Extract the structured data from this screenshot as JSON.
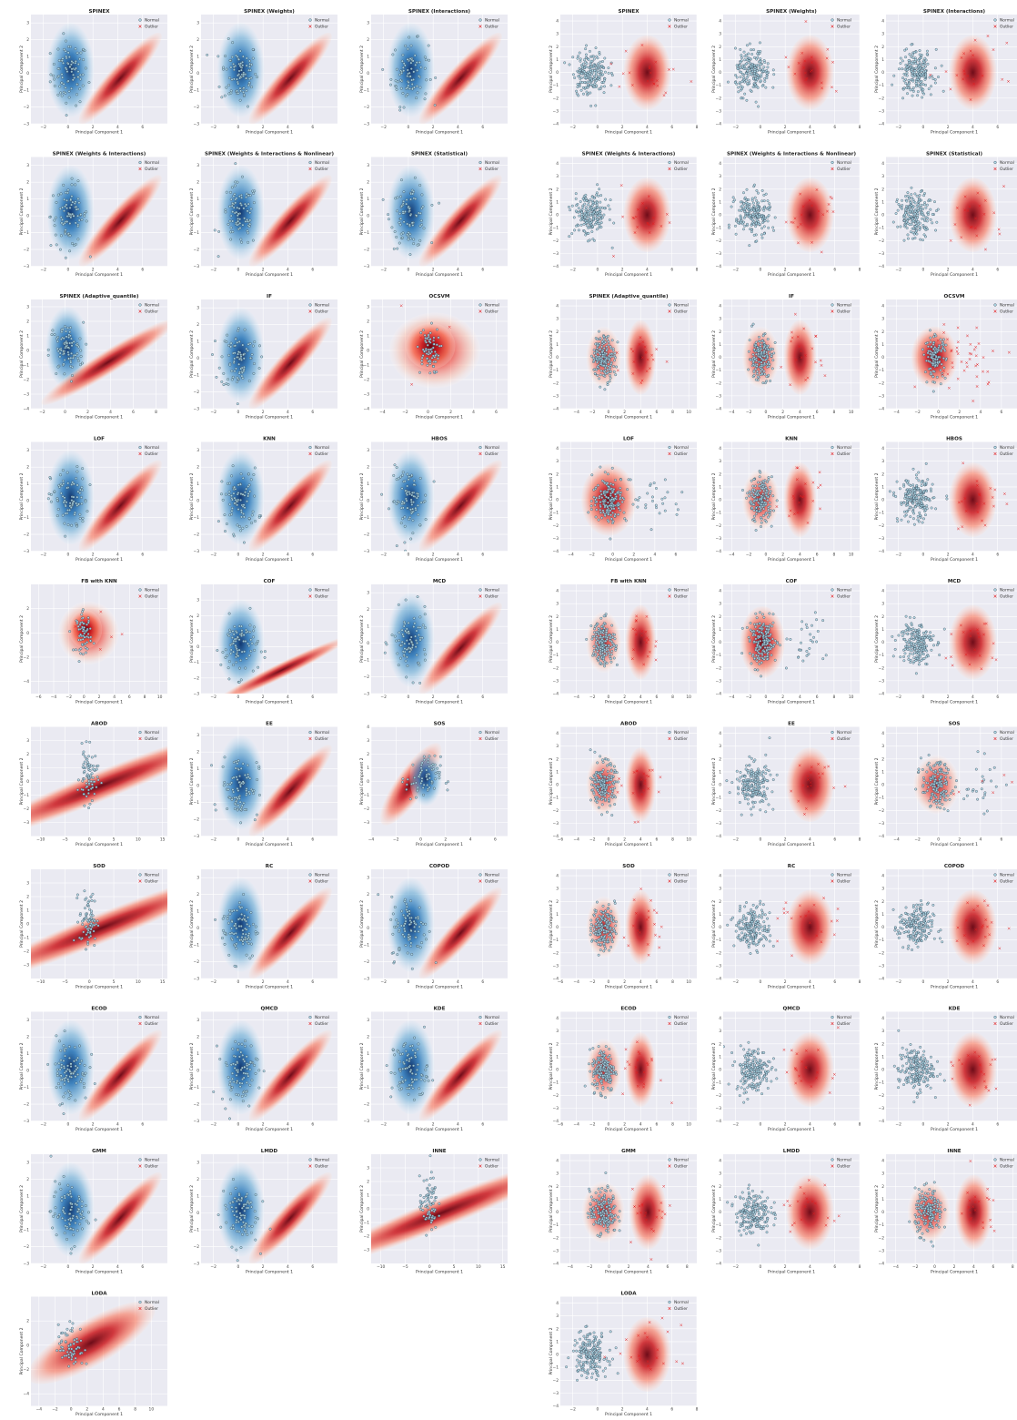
{
  "figure": {
    "xlabel": "Principal Component 1",
    "ylabel": "Principal Component 2",
    "legend": {
      "normal": "Normal",
      "outlier": "Outlier",
      "placement": "top-right"
    },
    "colors": {
      "background": "#eaeaf2",
      "normal_cmap": "Blues",
      "outlier_cmap": "Reds",
      "outlier_marker": "#e41a1c",
      "normal_point": "#add8e6"
    }
  },
  "chart_data": [
    {
      "panel": "left",
      "type": "scatter",
      "description_of_data": "outlier detection results projected on 2 principal components",
      "default": {
        "xlim": [
          -3,
          8
        ],
        "ylim": [
          -3,
          3.5
        ],
        "xticks": [
          -2,
          0,
          2,
          4,
          6
        ],
        "yticks": [
          -3,
          -2,
          -1,
          0,
          1,
          2,
          3
        ],
        "mode": "blue"
      },
      "subplots": [
        {
          "title": "SPINEX"
        },
        {
          "title": "SPINEX (Weights)"
        },
        {
          "title": "SPINEX (Interactions)"
        },
        {
          "title": "SPINEX (Weights & Interactions)"
        },
        {
          "title": "SPINEX (Weights & Interactions & Nonlinear)"
        },
        {
          "title": "SPINEX (Statistical)"
        },
        {
          "title": "SPINEX (Adaptive_quantile)",
          "mode": "blue-long",
          "xlim": [
            -3,
            9
          ],
          "ylim": [
            -4,
            3.5
          ],
          "yticks": [
            -4,
            -3,
            -2,
            -1,
            0,
            1,
            2,
            3
          ],
          "xticks": [
            -2,
            0,
            2,
            4,
            6,
            8
          ]
        },
        {
          "title": "IF"
        },
        {
          "title": "OCSVM",
          "mode": "red-big",
          "xlim": [
            -5,
            7
          ],
          "ylim": [
            -4,
            3.5
          ],
          "xticks": [
            -4,
            -2,
            0,
            2,
            4,
            6
          ],
          "yticks": [
            -4,
            -3,
            -2,
            -1,
            0,
            1,
            2,
            3
          ]
        },
        {
          "title": "LOF"
        },
        {
          "title": "KNN"
        },
        {
          "title": "HBOS"
        },
        {
          "title": "FB with KNN",
          "mode": "red-big",
          "xlim": [
            -7,
            11
          ],
          "ylim": [
            -5,
            4
          ],
          "xticks": [
            -6,
            -4,
            -2,
            0,
            2,
            4,
            6,
            8,
            10
          ],
          "yticks": [
            -4,
            -2,
            0,
            2
          ]
        },
        {
          "title": "COF",
          "mode": "blue-flat",
          "xlim": [
            -3,
            8
          ],
          "ylim": [
            -3,
            4
          ],
          "yticks": [
            -3,
            -2,
            -1,
            0,
            1,
            2,
            3
          ]
        },
        {
          "title": "MCD"
        },
        {
          "title": "ABOD",
          "mode": "red-diag",
          "xlim": [
            -12,
            16
          ],
          "ylim": [
            -4,
            4
          ],
          "xticks": [
            -10,
            -5,
            0,
            5,
            10,
            15
          ],
          "yticks": [
            -3,
            -2,
            -1,
            0,
            1,
            2,
            3
          ]
        },
        {
          "title": "EE"
        },
        {
          "title": "SOS",
          "mode": "red-sos",
          "xlim": [
            -4,
            7
          ],
          "ylim": [
            -4,
            4
          ],
          "xticks": [
            -4,
            -2,
            0,
            2,
            4,
            6
          ],
          "yticks": [
            -3,
            -2,
            -1,
            0,
            1,
            2,
            3,
            4
          ]
        },
        {
          "title": "SOD",
          "mode": "red-diag",
          "xlim": [
            -12,
            16
          ],
          "ylim": [
            -4,
            4
          ],
          "xticks": [
            -10,
            -5,
            0,
            5,
            10,
            15
          ],
          "yticks": [
            -3,
            -2,
            -1,
            0,
            1,
            2,
            3
          ]
        },
        {
          "title": "RC"
        },
        {
          "title": "COPOD"
        },
        {
          "title": "ECOD"
        },
        {
          "title": "QMCD"
        },
        {
          "title": "KDE"
        },
        {
          "title": "GMM"
        },
        {
          "title": "LMDD"
        },
        {
          "title": "INNE",
          "mode": "red-diag",
          "xlim": [
            -12,
            16
          ],
          "ylim": [
            -4,
            4
          ],
          "xticks": [
            -10,
            -5,
            0,
            5,
            10,
            15
          ],
          "yticks": [
            -3,
            -2,
            -1,
            0,
            1,
            2,
            3
          ]
        },
        {
          "title": "LODA",
          "mode": "red-loda",
          "xlim": [
            -5,
            12
          ],
          "ylim": [
            -5,
            4
          ],
          "xticks": [
            -4,
            -2,
            0,
            2,
            4,
            6,
            8,
            10
          ],
          "yticks": [
            -4,
            -2,
            0,
            2
          ]
        }
      ]
    },
    {
      "panel": "right",
      "type": "scatter",
      "description_of_data": "outlier detection results projected on 2 principal components",
      "default": {
        "xlim": [
          -3,
          8
        ],
        "ylim": [
          -4,
          4.5
        ],
        "xticks": [
          -2,
          0,
          2,
          4,
          6,
          8
        ],
        "yticks": [
          -4,
          -3,
          -2,
          -1,
          0,
          1,
          2,
          3,
          4
        ],
        "mode": "two"
      },
      "subplots": [
        {
          "title": "SPINEX"
        },
        {
          "title": "SPINEX (Weights)"
        },
        {
          "title": "SPINEX (Interactions)"
        },
        {
          "title": "SPINEX (Weights & Interactions)"
        },
        {
          "title": "SPINEX (Weights & Interactions & Nonlinear)"
        },
        {
          "title": "SPINEX (Statistical)"
        },
        {
          "title": "SPINEX (Adaptive_quantile)",
          "mode": "two-wide",
          "xlim": [
            -6,
            11
          ],
          "xticks": [
            -4,
            -2,
            0,
            2,
            4,
            6,
            8,
            10
          ]
        },
        {
          "title": "IF",
          "mode": "two-wide",
          "xlim": [
            -5,
            11
          ],
          "xticks": [
            -4,
            -2,
            0,
            2,
            4,
            6,
            8,
            10
          ]
        },
        {
          "title": "OCSVM",
          "mode": "ocsvm",
          "xlim": [
            -5,
            8
          ],
          "xticks": [
            -4,
            -2,
            0,
            2,
            4,
            6
          ]
        },
        {
          "title": "LOF",
          "mode": "lof",
          "xlim": [
            -5,
            8
          ],
          "xticks": [
            -4,
            -2,
            0,
            2,
            4,
            6
          ]
        },
        {
          "title": "KNN",
          "mode": "two-wide",
          "xlim": [
            -5,
            11
          ],
          "xticks": [
            -4,
            -2,
            0,
            2,
            4,
            6,
            8,
            10
          ]
        },
        {
          "title": "HBOS"
        },
        {
          "title": "FB with KNN",
          "mode": "two-wide",
          "xlim": [
            -6,
            11
          ],
          "xticks": [
            -4,
            -2,
            0,
            2,
            4,
            6,
            8,
            10
          ]
        },
        {
          "title": "COF",
          "mode": "lof",
          "xlim": [
            -5,
            11
          ],
          "xticks": [
            -4,
            -2,
            0,
            2,
            4,
            6,
            8,
            10
          ]
        },
        {
          "title": "MCD"
        },
        {
          "title": "ABOD",
          "mode": "two-wide",
          "xlim": [
            -6,
            11
          ],
          "xticks": [
            -6,
            -4,
            -2,
            0,
            2,
            4,
            6,
            8,
            10
          ]
        },
        {
          "title": "EE"
        },
        {
          "title": "SOS",
          "mode": "sos",
          "xlim": [
            -5,
            8
          ],
          "xticks": [
            -4,
            -2,
            0,
            2,
            4,
            6
          ]
        },
        {
          "title": "SOD",
          "mode": "two-wide",
          "xlim": [
            -6,
            11
          ],
          "xticks": [
            -6,
            -4,
            -2,
            0,
            2,
            4,
            6,
            8,
            10
          ]
        },
        {
          "title": "RC"
        },
        {
          "title": "COPOD"
        },
        {
          "title": "ECOD",
          "mode": "two-wide",
          "xlim": [
            -6,
            11
          ],
          "xticks": [
            -6,
            -4,
            -2,
            0,
            2,
            4,
            6,
            8,
            10
          ]
        },
        {
          "title": "QMCD"
        },
        {
          "title": "KDE"
        },
        {
          "title": "GMM",
          "mode": "two-wide",
          "xlim": [
            -5,
            9
          ],
          "xticks": [
            -4,
            -2,
            0,
            2,
            4,
            6,
            8
          ]
        },
        {
          "title": "LMDD"
        },
        {
          "title": "INNE",
          "mode": "two-wide",
          "xlim": [
            -5,
            9
          ],
          "xticks": [
            -4,
            -2,
            0,
            2,
            4,
            6,
            8
          ]
        },
        {
          "title": "LODA",
          "xlim": [
            -3,
            8
          ],
          "xticks": [
            -4,
            -2,
            0,
            2,
            4,
            6,
            8
          ]
        }
      ]
    }
  ]
}
